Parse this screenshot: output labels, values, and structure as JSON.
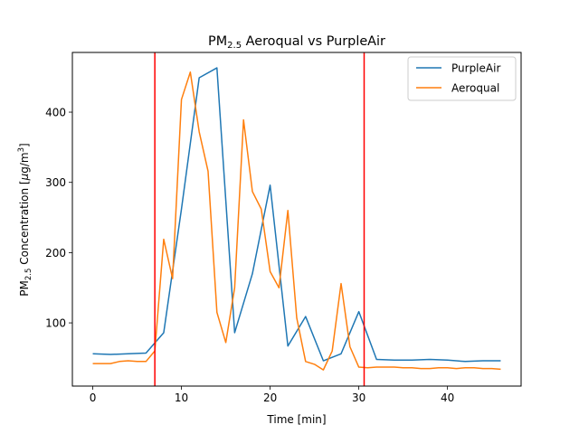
{
  "chart_data": {
    "type": "line",
    "title": {
      "base": "PM",
      "sub": "2.5",
      "rest": " Aeroqual vs PurpleAir"
    },
    "xlabel": "Time [min]",
    "ylabel": {
      "base": "PM",
      "sub": "2.5",
      "mid": " Concentration [",
      "mu": "μ",
      "unit": "g/m",
      "sup": "3",
      "end": "]"
    },
    "xlim": [
      -2.3,
      48.3
    ],
    "ylim": [
      10,
      485
    ],
    "xticks": [
      0,
      10,
      20,
      30,
      40
    ],
    "yticks": [
      100,
      200,
      300,
      400
    ],
    "vlines": [
      {
        "x": 7.0,
        "color": "#ff0000"
      },
      {
        "x": 30.6,
        "color": "#ff0000"
      }
    ],
    "legend_position": "top-right",
    "series": [
      {
        "name": "PurpleAir",
        "color": "#1f77b4",
        "x": [
          0,
          2,
          4,
          6,
          8,
          10,
          12,
          14,
          16,
          18,
          20,
          22,
          24,
          26,
          28,
          30,
          32,
          34,
          36,
          38,
          40,
          42,
          44,
          46
        ],
        "y": [
          56,
          55,
          56,
          57,
          86,
          262,
          449,
          463,
          86,
          170,
          296,
          67,
          109,
          46,
          56,
          116,
          48,
          47,
          47,
          48,
          47,
          45,
          46,
          46
        ]
      },
      {
        "name": "Aeroqual",
        "color": "#ff7f0e",
        "x": [
          0,
          1,
          2,
          3,
          4,
          5,
          6,
          7,
          8,
          9,
          10,
          11,
          12,
          13,
          14,
          15,
          16,
          17,
          18,
          19,
          20,
          21,
          22,
          23,
          24,
          25,
          26,
          27,
          28,
          29,
          30,
          31,
          32,
          33,
          34,
          35,
          36,
          37,
          38,
          39,
          40,
          41,
          42,
          43,
          44,
          45,
          46
        ],
        "y": [
          42,
          42,
          42,
          45,
          46,
          45,
          45,
          60,
          219,
          163,
          418,
          457,
          372,
          316,
          115,
          72,
          150,
          389,
          287,
          262,
          173,
          150,
          260,
          107,
          45,
          41,
          33,
          60,
          156,
          66,
          37,
          36,
          37,
          37,
          37,
          36,
          36,
          35,
          35,
          36,
          36,
          35,
          36,
          36,
          35,
          35,
          34
        ]
      }
    ]
  }
}
